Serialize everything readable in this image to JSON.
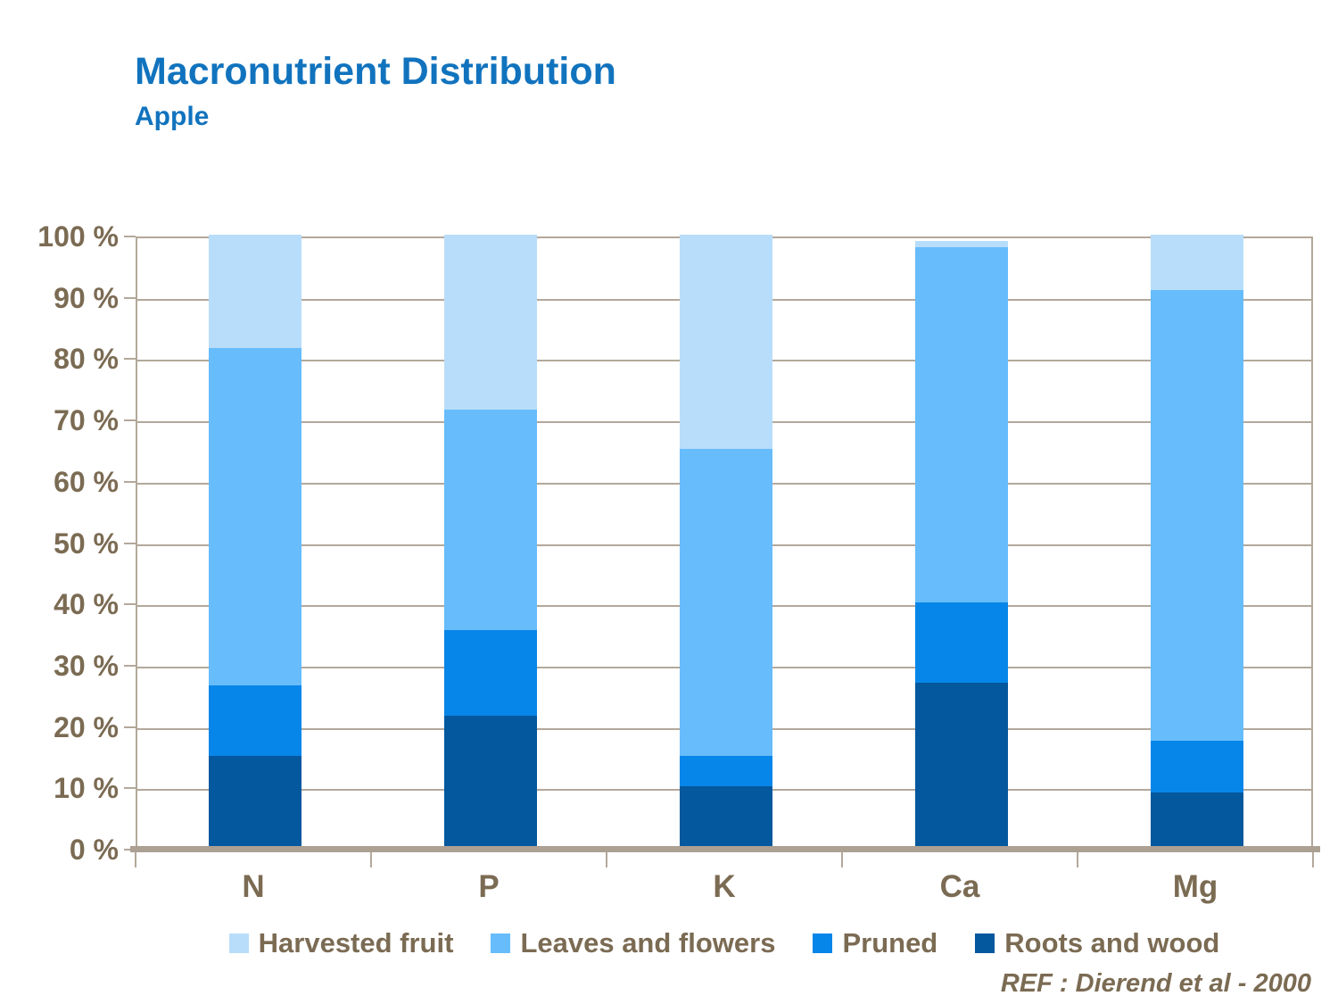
{
  "header": {
    "title": "Macronutrient Distribution",
    "subtitle": "Apple"
  },
  "footer": {
    "reference": "REF :  Dierend et al - 2000"
  },
  "colors": {
    "title_blue": "#1173BE",
    "axis_text_brown": "#7B6B53",
    "gridline": "#B3A89A",
    "axis_line": "#ACA093",
    "harvested_fruit": "#B8DDFA",
    "leaves_and_flowers": "#67BCFB",
    "pruned": "#0786E9",
    "roots_and_wood": "#04589D"
  },
  "chart_data": {
    "type": "bar",
    "stacked": true,
    "title": "Macronutrient Distribution",
    "subtitle": "Apple",
    "unit": "percent",
    "categories": [
      "N",
      "P",
      "K",
      "Ca",
      "Mg"
    ],
    "series": [
      {
        "name": "Roots and wood",
        "color": "#04589D",
        "values": [
          15,
          21.5,
          10,
          27,
          9
        ]
      },
      {
        "name": "Pruned",
        "color": "#0786E9",
        "values": [
          11.5,
          14,
          5,
          13,
          8.5
        ]
      },
      {
        "name": "Leaves and flowers",
        "color": "#67BCFB",
        "values": [
          55,
          36,
          50,
          58,
          73.5
        ]
      },
      {
        "name": "Harvested fruit",
        "color": "#B8DDFA",
        "values": [
          18.5,
          28.5,
          35,
          1,
          9
        ]
      }
    ],
    "legend": [
      "Harvested fruit",
      "Leaves and flowers",
      "Pruned",
      "Roots and wood"
    ],
    "y_tick_labels": [
      "0 %",
      "10 %",
      "20 %",
      "30 %",
      "40 %",
      "50 %",
      "60 %",
      "70 %",
      "80 %",
      "90 %",
      "100 %"
    ],
    "ylim": [
      0,
      100
    ],
    "grid": true,
    "legend_position": "bottom"
  }
}
